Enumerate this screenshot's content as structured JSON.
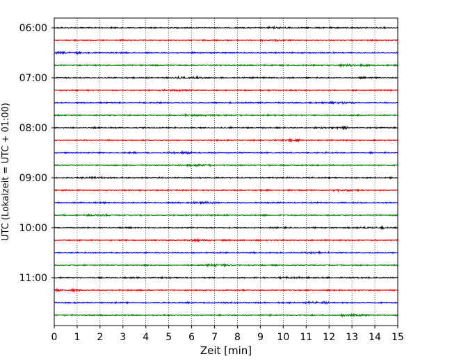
{
  "chart_data": {
    "type": "line",
    "title": "",
    "xlabel": "Zeit  [min]",
    "ylabel": "UTC (Lokalzeit = UTC + 01:00)",
    "xlim": [
      0,
      15
    ],
    "xticks": [
      "0",
      "1",
      "2",
      "3",
      "4",
      "5",
      "6",
      "7",
      "8",
      "9",
      "10",
      "11",
      "12",
      "13",
      "14",
      "15"
    ],
    "yticks": [
      "06:00",
      "07:00",
      "08:00",
      "09:00",
      "10:00",
      "11:00"
    ],
    "trace_count": 24,
    "trace_interval_minutes": 15,
    "start_time": "06:00",
    "grid": "vertical-dotted",
    "series_colors": [
      "#000000",
      "#ff0000",
      "#0000ff",
      "#008000"
    ],
    "traces": [
      {
        "start": "06:00",
        "color": "#000000"
      },
      {
        "start": "06:15",
        "color": "#ff0000"
      },
      {
        "start": "06:30",
        "color": "#0000ff"
      },
      {
        "start": "06:45",
        "color": "#008000"
      },
      {
        "start": "07:00",
        "color": "#000000"
      },
      {
        "start": "07:15",
        "color": "#ff0000"
      },
      {
        "start": "07:30",
        "color": "#0000ff"
      },
      {
        "start": "07:45",
        "color": "#008000"
      },
      {
        "start": "08:00",
        "color": "#000000"
      },
      {
        "start": "08:15",
        "color": "#ff0000"
      },
      {
        "start": "08:30",
        "color": "#0000ff"
      },
      {
        "start": "08:45",
        "color": "#008000"
      },
      {
        "start": "09:00",
        "color": "#000000"
      },
      {
        "start": "09:15",
        "color": "#ff0000"
      },
      {
        "start": "09:30",
        "color": "#0000ff"
      },
      {
        "start": "09:45",
        "color": "#008000"
      },
      {
        "start": "10:00",
        "color": "#000000"
      },
      {
        "start": "10:15",
        "color": "#ff0000"
      },
      {
        "start": "10:30",
        "color": "#0000ff"
      },
      {
        "start": "10:45",
        "color": "#008000"
      },
      {
        "start": "11:00",
        "color": "#000000"
      },
      {
        "start": "11:15",
        "color": "#ff0000"
      },
      {
        "start": "11:30",
        "color": "#0000ff"
      },
      {
        "start": "11:45",
        "color": "#008000"
      }
    ]
  }
}
